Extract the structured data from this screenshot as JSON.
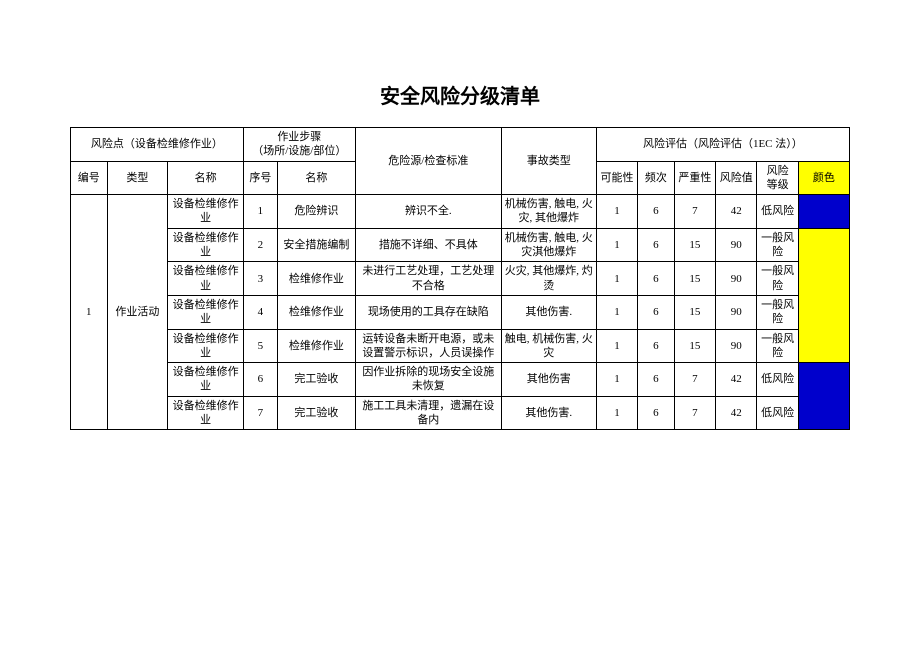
{
  "title": "安全风险分级清单",
  "headers": {
    "riskPoint": "风险点（设备检维修作业）",
    "steps": "作业步骤\n（场所/设施/部位）",
    "hazard": "危险源/检查标准",
    "accident": "事故类型",
    "assessGroup": "风险评估（风险评估（1EC 法））",
    "num": "编号",
    "type": "类型",
    "name": "名称",
    "seq": "序号",
    "stepName": "名称",
    "likelihood": "可能性",
    "freq": "频次",
    "severity": "严重性",
    "value": "风险值",
    "level": "风险\n等级",
    "color": "颜色"
  },
  "group": {
    "num": "1",
    "type": "作业活动"
  },
  "rows": [
    {
      "name": "设备检维修作业",
      "seq": "1",
      "step": "危险辨识",
      "hazard": "辨识不全.",
      "accident": "机械伤害, 触电, 火灾, 其他爆炸",
      "l": "1",
      "f": "6",
      "s": "7",
      "v": "42",
      "level": "低风险",
      "colorClass": "color-blue",
      "colorSpan": 1
    },
    {
      "name": "设备检维修作业",
      "seq": "2",
      "step": "安全措施编制",
      "hazard": "措施不详细、不具体",
      "accident": "机械伤害, 触电, 火灾淇他爆炸",
      "l": "1",
      "f": "6",
      "s": "15",
      "v": "90",
      "level": "一般风险",
      "colorClass": "color-yellow",
      "colorSpan": 4
    },
    {
      "name": "设备检维修作业",
      "seq": "3",
      "step": "检维修作业",
      "hazard": "未进行工艺处理，工艺处理不合格",
      "accident": "火灾, 其他爆炸, 灼烫",
      "l": "1",
      "f": "6",
      "s": "15",
      "v": "90",
      "level": "一般风险"
    },
    {
      "name": "设备检维修作业",
      "seq": "4",
      "step": "检维修作业",
      "hazard": "现场使用的工具存在缺陷",
      "accident": "其他伤害.",
      "l": "1",
      "f": "6",
      "s": "15",
      "v": "90",
      "level": "一般风险"
    },
    {
      "name": "设备检维修作业",
      "seq": "5",
      "step": "检维修作业",
      "hazard": "运转设备未断开电源，或未设置警示标识，人员误操作",
      "accident": "触电, 机械伤害, 火灾",
      "l": "1",
      "f": "6",
      "s": "15",
      "v": "90",
      "level": "一般风险"
    },
    {
      "name": "设备检维修作业",
      "seq": "6",
      "step": "完工验收",
      "hazard": "因作业拆除的现场安全设施未恢复",
      "accident": "其他伤害",
      "l": "1",
      "f": "6",
      "s": "7",
      "v": "42",
      "level": "低风险",
      "colorClass": "color-blue",
      "colorSpan": 2
    },
    {
      "name": "设备检维修作业",
      "seq": "7",
      "step": "完工验收",
      "hazard": "施工工具未清理，遗漏在设备内",
      "accident": "其他伤害.",
      "l": "1",
      "f": "6",
      "s": "7",
      "v": "42",
      "level": "低风险"
    }
  ],
  "style": {
    "colors": {
      "blue": "#0000cc",
      "yellow": "#ffff00",
      "border": "#000000",
      "background": "#ffffff"
    },
    "fontSizes": {
      "title": 20,
      "body": 11
    }
  }
}
